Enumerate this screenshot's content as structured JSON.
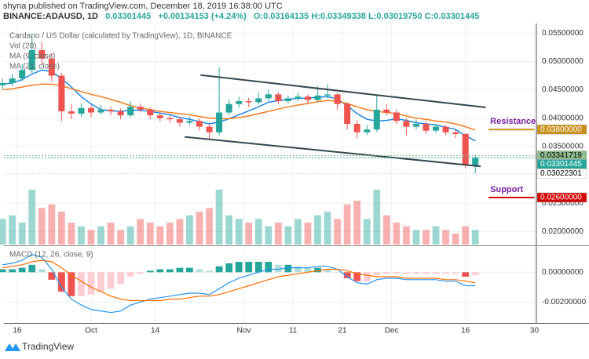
{
  "header": {
    "publisher": "shyna published on TradingView.com, December 18, 2019 16:38:00 UTC",
    "symbol": "BINANCE:ADAUSD, 1D",
    "last": "0.03301445",
    "change": "+0.00134153 (+4.24%)",
    "ohlc": "O:0.03164135 H:0.03349338 L:0.03019750 C:0.03301445"
  },
  "footer": "TradingView",
  "chart_data": [
    {
      "type": "candlestick",
      "title": "Cardano / US Dollar (calculated by TradingView), 1D, BINANCE",
      "x": [
        -3,
        -1,
        1,
        3,
        5,
        7,
        9,
        11,
        13,
        15,
        17,
        19,
        21,
        23,
        25,
        27,
        29,
        31,
        33,
        35,
        37,
        39,
        41,
        43,
        45,
        47,
        49,
        51,
        53,
        55,
        57,
        59,
        61,
        63,
        65,
        67,
        69,
        71,
        73,
        75,
        77,
        79,
        81,
        83,
        85,
        87,
        89,
        91,
        93
      ],
      "open": [
        0.0458,
        0.0462,
        0.047,
        0.0485,
        0.052,
        0.0505,
        0.0475,
        0.0412,
        0.0408,
        0.0418,
        0.041,
        0.0415,
        0.0412,
        0.0405,
        0.042,
        0.0415,
        0.0405,
        0.04,
        0.0398,
        0.0392,
        0.0395,
        0.0385,
        0.0375,
        0.041,
        0.0425,
        0.043,
        0.0428,
        0.0435,
        0.0442,
        0.043,
        0.0435,
        0.0438,
        0.0432,
        0.044,
        0.0442,
        0.0425,
        0.039,
        0.0375,
        0.038,
        0.0415,
        0.041,
        0.0395,
        0.0385,
        0.039,
        0.0378,
        0.0385,
        0.0375,
        0.0372,
        0.03164135
      ],
      "high": [
        0.047,
        0.0478,
        0.0495,
        0.0545,
        0.0535,
        0.0515,
        0.048,
        0.0425,
        0.0426,
        0.0423,
        0.0423,
        0.042,
        0.0417,
        0.043,
        0.0426,
        0.0419,
        0.041,
        0.0406,
        0.0403,
        0.0402,
        0.0399,
        0.039,
        0.049,
        0.0433,
        0.0438,
        0.0436,
        0.0445,
        0.045,
        0.0446,
        0.044,
        0.0445,
        0.0442,
        0.0456,
        0.046,
        0.0445,
        0.0428,
        0.0396,
        0.0388,
        0.044,
        0.0425,
        0.0415,
        0.04,
        0.0398,
        0.0395,
        0.039,
        0.0388,
        0.038,
        0.0374,
        0.03349338
      ],
      "low": [
        0.045,
        0.0456,
        0.0465,
        0.048,
        0.0495,
        0.0465,
        0.0395,
        0.0398,
        0.0402,
        0.0402,
        0.0406,
        0.0405,
        0.0398,
        0.0402,
        0.041,
        0.0398,
        0.0394,
        0.0392,
        0.0385,
        0.0388,
        0.0378,
        0.0362,
        0.037,
        0.0405,
        0.0418,
        0.042,
        0.0424,
        0.043,
        0.0425,
        0.0426,
        0.043,
        0.0427,
        0.0429,
        0.0435,
        0.0415,
        0.038,
        0.0365,
        0.037,
        0.0376,
        0.0405,
        0.039,
        0.037,
        0.038,
        0.0372,
        0.0374,
        0.037,
        0.0365,
        0.0312,
        0.0301975
      ],
      "close": [
        0.0462,
        0.047,
        0.0485,
        0.052,
        0.0505,
        0.0475,
        0.0412,
        0.0408,
        0.0418,
        0.041,
        0.0415,
        0.0412,
        0.0405,
        0.042,
        0.0415,
        0.0405,
        0.04,
        0.0398,
        0.0392,
        0.0395,
        0.0385,
        0.0375,
        0.041,
        0.0425,
        0.043,
        0.0428,
        0.0435,
        0.0442,
        0.043,
        0.0435,
        0.0438,
        0.0432,
        0.044,
        0.0442,
        0.0425,
        0.039,
        0.0375,
        0.038,
        0.0415,
        0.041,
        0.0395,
        0.0385,
        0.039,
        0.0378,
        0.0385,
        0.0375,
        0.0372,
        0.0317,
        0.03301445
      ],
      "up_color": "#26a69a",
      "down_color": "#ef5350",
      "volume": {
        "label": "Vol (20)",
        "values": [
          35,
          40,
          30,
          75,
          50,
          55,
          45,
          30,
          25,
          20,
          25,
          30,
          20,
          25,
          35,
          30,
          25,
          30,
          35,
          40,
          45,
          50,
          75,
          40,
          35,
          30,
          35,
          25,
          30,
          25,
          35,
          30,
          40,
          45,
          35,
          55,
          60,
          35,
          75,
          40,
          30,
          25,
          20,
          20,
          25,
          20,
          15,
          25,
          20
        ]
      },
      "moving_averages": [
        {
          "name": "MA (9, close)",
          "color": "#1e88e5",
          "values": [
            0.046,
            0.0462,
            0.0468,
            0.0478,
            0.0485,
            0.0482,
            0.047,
            0.0455,
            0.0438,
            0.0425,
            0.0415,
            0.0413,
            0.0412,
            0.0414,
            0.0414,
            0.0412,
            0.0409,
            0.0406,
            0.0401,
            0.0398,
            0.0394,
            0.039,
            0.0393,
            0.0399,
            0.0406,
            0.0413,
            0.042,
            0.0428,
            0.0431,
            0.0433,
            0.0435,
            0.0435,
            0.0437,
            0.0438,
            0.0434,
            0.0422,
            0.0408,
            0.0398,
            0.0395,
            0.0396,
            0.0399,
            0.0396,
            0.0392,
            0.039,
            0.0388,
            0.0384,
            0.038,
            0.0369,
            0.036
          ]
        },
        {
          "name": "MA (21, close)",
          "color": "#f57c20",
          "values": [
            0.045,
            0.0452,
            0.0455,
            0.0458,
            0.046,
            0.046,
            0.0457,
            0.0452,
            0.0447,
            0.0442,
            0.0438,
            0.0433,
            0.0428,
            0.0422,
            0.0418,
            0.0415,
            0.0412,
            0.041,
            0.0408,
            0.0406,
            0.0403,
            0.04,
            0.0399,
            0.0399,
            0.0401,
            0.0404,
            0.0408,
            0.0412,
            0.0416,
            0.042,
            0.0423,
            0.0426,
            0.0429,
            0.0431,
            0.043,
            0.0426,
            0.042,
            0.0415,
            0.0412,
            0.041,
            0.0408,
            0.0404,
            0.04,
            0.0398,
            0.0395,
            0.0393,
            0.039,
            0.0385,
            0.0379
          ]
        }
      ],
      "xlim": [
        -2.7,
        105.4
      ],
      "xticks": [
        {
          "value": 0,
          "label": "16"
        },
        {
          "value": 15,
          "label": "Oct"
        },
        {
          "value": 28,
          "label": "14"
        },
        {
          "value": 46,
          "label": "Nov"
        },
        {
          "value": 56,
          "label": "11"
        },
        {
          "value": 66,
          "label": "21"
        },
        {
          "value": 76,
          "label": "Dec"
        },
        {
          "value": 91,
          "label": "16"
        },
        {
          "value": 105,
          "label": "30"
        }
      ],
      "ylim": [
        0.0177,
        0.0567
      ],
      "yticks": [
        {
          "value": 0.055,
          "label": "0.05500000"
        },
        {
          "value": 0.05,
          "label": "0.05000000"
        },
        {
          "value": 0.045,
          "label": "0.04500000"
        },
        {
          "value": 0.04,
          "label": "0.04000000"
        },
        {
          "value": 0.035,
          "label": "0.03500000"
        },
        {
          "value": 0.025,
          "label": "0.02500000"
        },
        {
          "value": 0.02,
          "label": "0.02000000"
        }
      ],
      "grid": true,
      "trendlines": [
        {
          "x": [
            37.2,
            95.1
          ],
          "y": [
            0.0476,
            0.0419
          ],
          "color": "#37474f"
        },
        {
          "x": [
            34,
            94.1
          ],
          "y": [
            0.0367,
            0.0315
          ],
          "color": "#37474f"
        }
      ],
      "levels": [
        {
          "text": "Resistance",
          "value": 0.038,
          "value_label": "0.03800000",
          "x": [
            95.7,
            105
          ],
          "color": "#c8901a",
          "text_color": "#7b1fa2"
        },
        {
          "text": "Support",
          "value": 0.026,
          "value_label": "0.02600000",
          "x": [
            95.7,
            105
          ],
          "color": "#d50000",
          "text_color": "#7b1fa2"
        }
      ],
      "price_tags": [
        {
          "value": 0.03341719,
          "color": "#8fbc8f",
          "text_color": "#000000"
        },
        {
          "value": 0.03301445,
          "color": "#26a69a",
          "text_color": "#ffffff"
        },
        {
          "value": 0.03022301,
          "color": "#ffffff",
          "text_color": "#000000"
        }
      ]
    },
    {
      "type": "macd",
      "title": "MACD (12, 26, close, 9)",
      "histogram": [
        0.0002,
        0.0002,
        0.0003,
        0.0005,
        0.0002,
        -0.0005,
        -0.0013,
        -0.0016,
        -0.0016,
        -0.0015,
        -0.0013,
        -0.0011,
        -0.0008,
        -0.0003,
        -0.0001,
        0.0001,
        0.0002,
        0.0002,
        0.0003,
        0.0003,
        0.0002,
        0.0001,
        0.0004,
        0.0006,
        0.0007,
        0.0007,
        0.0007,
        0.0007,
        0.0005,
        0.0005,
        0.0004,
        0.0003,
        0.0003,
        0.0002,
        0,
        -0.0004,
        -0.0006,
        -0.0006,
        -0.0002,
        -0.0001,
        -0.0001,
        -0.0001,
        -0.0001,
        -0.0001,
        -0.0001,
        -0.0001,
        -0.0001,
        -0.0003,
        -0.0002
      ],
      "macd": [
        0.0005,
        0.0006,
        0.0008,
        0.0012,
        0.001,
        0.0002,
        -0.001,
        -0.0018,
        -0.0022,
        -0.0025,
        -0.0026,
        -0.0027,
        -0.0026,
        -0.0022,
        -0.002,
        -0.0018,
        -0.0017,
        -0.0016,
        -0.0015,
        -0.0014,
        -0.0014,
        -0.0015,
        -0.0011,
        -0.0007,
        -0.0004,
        -0.0002,
        0,
        0.0002,
        0.0002,
        0.0003,
        0.0003,
        0.0003,
        0.0004,
        0.0004,
        0.0002,
        -0.0003,
        -0.0007,
        -0.0008,
        -0.0005,
        -0.0004,
        -0.0004,
        -0.0005,
        -0.0005,
        -0.0005,
        -0.0005,
        -0.0006,
        -0.0006,
        -0.0009,
        -0.0009
      ],
      "signal": [
        0.0003,
        0.0004,
        0.0005,
        0.0007,
        0.0008,
        0.0007,
        0.0003,
        -0.0002,
        -0.0006,
        -0.001,
        -0.0013,
        -0.0016,
        -0.0018,
        -0.0019,
        -0.0019,
        -0.0019,
        -0.0019,
        -0.0018,
        -0.0018,
        -0.0017,
        -0.0016,
        -0.0016,
        -0.0015,
        -0.0013,
        -0.0011,
        -0.0009,
        -0.0007,
        -0.0005,
        -0.0003,
        -0.0002,
        -0.0001,
        0,
        0.0001,
        0.0002,
        0.0002,
        0.0001,
        -0.0001,
        -0.0002,
        -0.0003,
        -0.0003,
        -0.0003,
        -0.0004,
        -0.0004,
        -0.0004,
        -0.0004,
        -0.0005,
        -0.0005,
        -0.0006,
        -0.0007
      ],
      "histogram_colors": [
        "#26a69a",
        "#b2dfdb",
        "#ef5350",
        "#ffcdd2"
      ],
      "macd_color": "#2196f3",
      "signal_color": "#ff6d00",
      "ylim": [
        -0.0034,
        0.0017
      ],
      "yticks": [
        {
          "value": 0,
          "label": "0.00000000"
        },
        {
          "value": -0.002,
          "label": "-0.00200000"
        }
      ]
    }
  ]
}
